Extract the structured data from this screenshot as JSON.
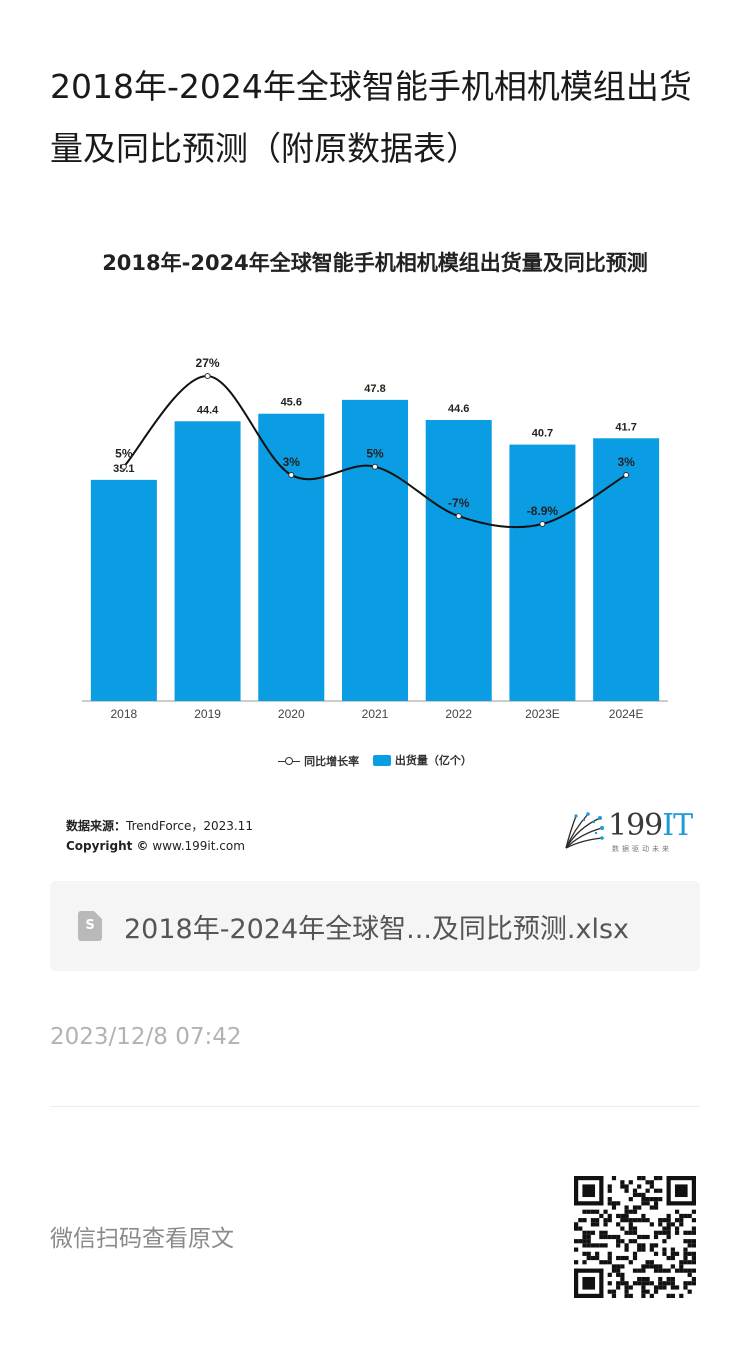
{
  "article": {
    "title": "2018年-2024年全球智能手机相机模组出货量及同比预测（附原数据表）"
  },
  "chart_data": {
    "type": "bar",
    "title": "2018年-2024年全球智能手机相机模组出货量及同比预测",
    "categories": [
      "2018",
      "2019",
      "2020",
      "2021",
      "2022",
      "2023E",
      "2024E"
    ],
    "series": [
      {
        "name": "出货量（亿个）",
        "kind": "bar",
        "color": "#0a9de4",
        "values": [
          35.1,
          44.4,
          45.6,
          47.8,
          44.6,
          40.7,
          41.7
        ]
      },
      {
        "name": "同比增长率",
        "kind": "line",
        "color": "#111111",
        "values": [
          5,
          27,
          3,
          5,
          -7,
          -8.9,
          3
        ],
        "labels": [
          "5%",
          "27%",
          "3%",
          "5%",
          "-7%",
          "-8.9%",
          "3%"
        ]
      }
    ],
    "bar_labels": [
      "35.1",
      "44.4",
      "45.6",
      "47.8",
      "44.6",
      "40.7",
      "41.7"
    ],
    "legend": {
      "line_label": "同比增长率",
      "bar_label": "出货量（亿个）",
      "placement": "bottom-center"
    },
    "grid": false
  },
  "source": {
    "label": "数据来源：",
    "value": "TrendForce，2023.11",
    "copyright_label": "Copyright ©",
    "copyright_site": "www.199it.com"
  },
  "brand": {
    "number": "199",
    "suffix": "IT",
    "tagline": "数据驱动未来"
  },
  "file": {
    "name": "2018年-2024年全球智...及同比预测.xlsx",
    "icon": "spreadsheet-icon",
    "icon_mark": "S"
  },
  "meta": {
    "timestamp": "2023/12/8 07:42"
  },
  "footer": {
    "scan_text": "微信扫码查看原文"
  }
}
